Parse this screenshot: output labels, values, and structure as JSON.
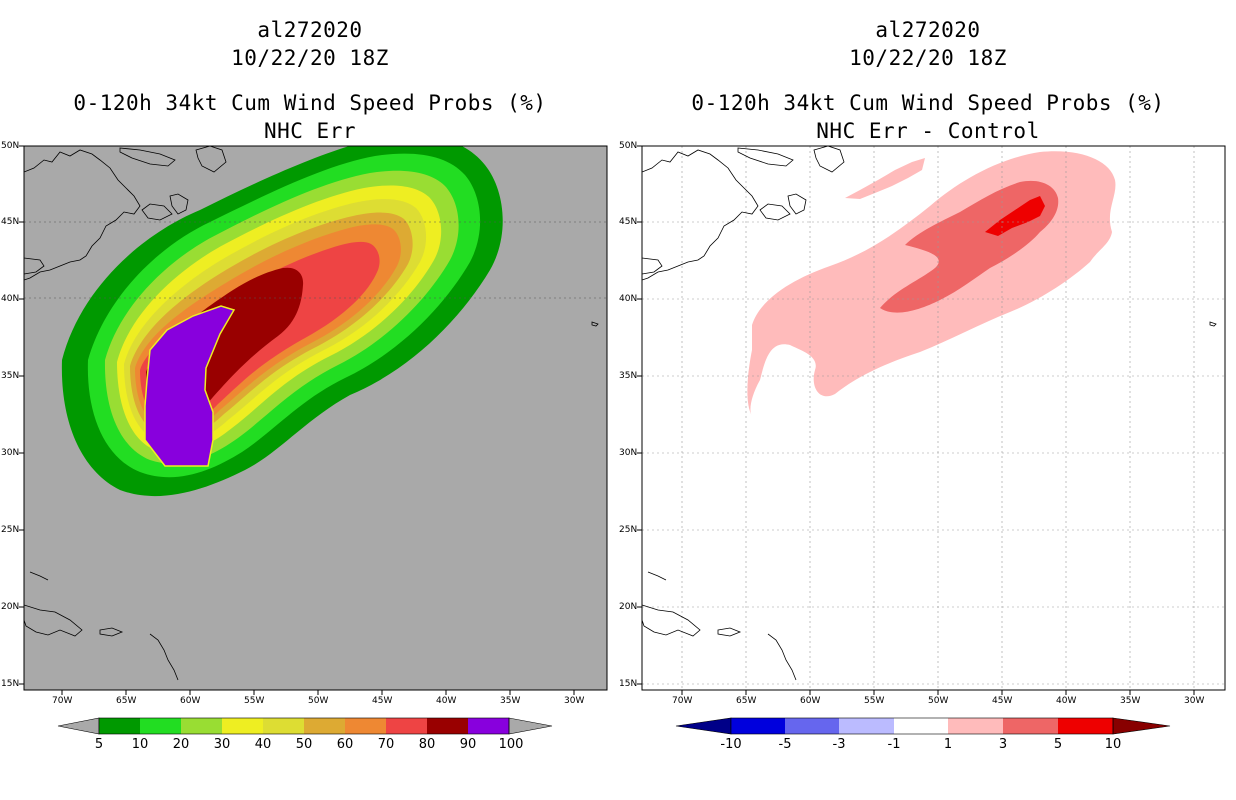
{
  "panels": [
    {
      "id": "left",
      "storm_id": "al272020",
      "date": "10/22/20 18Z",
      "title": "0-120h 34kt Cum Wind Speed Probs (%)",
      "subtitle": "NHC Err",
      "background": "#a9a9a9",
      "colorbar": {
        "labels": [
          "5",
          "10",
          "20",
          "30",
          "40",
          "50",
          "60",
          "70",
          "80",
          "90",
          "100"
        ],
        "colors": [
          "#009900",
          "#22dd22",
          "#99dd33",
          "#eeee22",
          "#dddd33",
          "#ddaa33",
          "#ee8833",
          "#ee4444",
          "#990000",
          "#8800dd"
        ],
        "under_color": "#a9a9a9",
        "over_color": "#a9a9a9"
      }
    },
    {
      "id": "right",
      "storm_id": "al272020",
      "date": "10/22/20 18Z",
      "title": "0-120h 34kt Cum Wind Speed Probs (%)",
      "subtitle": "NHC Err - Control",
      "background": "#ffffff",
      "colorbar": {
        "labels": [
          "-10",
          "-5",
          "-3",
          "-1",
          "1",
          "3",
          "5",
          "10"
        ],
        "colors": [
          "#0000dd",
          "#6666ee",
          "#bbbbff",
          "#ffffff",
          "#ffbbbb",
          "#ee6666",
          "#ee0000"
        ],
        "under_color": "#000088",
        "over_color": "#880000"
      }
    }
  ],
  "axes": {
    "lon_labels": [
      "70W",
      "65W",
      "60W",
      "55W",
      "50W",
      "45W",
      "40W",
      "35W",
      "30W"
    ],
    "lat_labels": [
      "15N",
      "20N",
      "25N",
      "30N",
      "35N",
      "40N",
      "45N",
      "50N"
    ],
    "lon_range": [
      -73,
      -27
    ],
    "lat_range": [
      14.5,
      50
    ]
  }
}
